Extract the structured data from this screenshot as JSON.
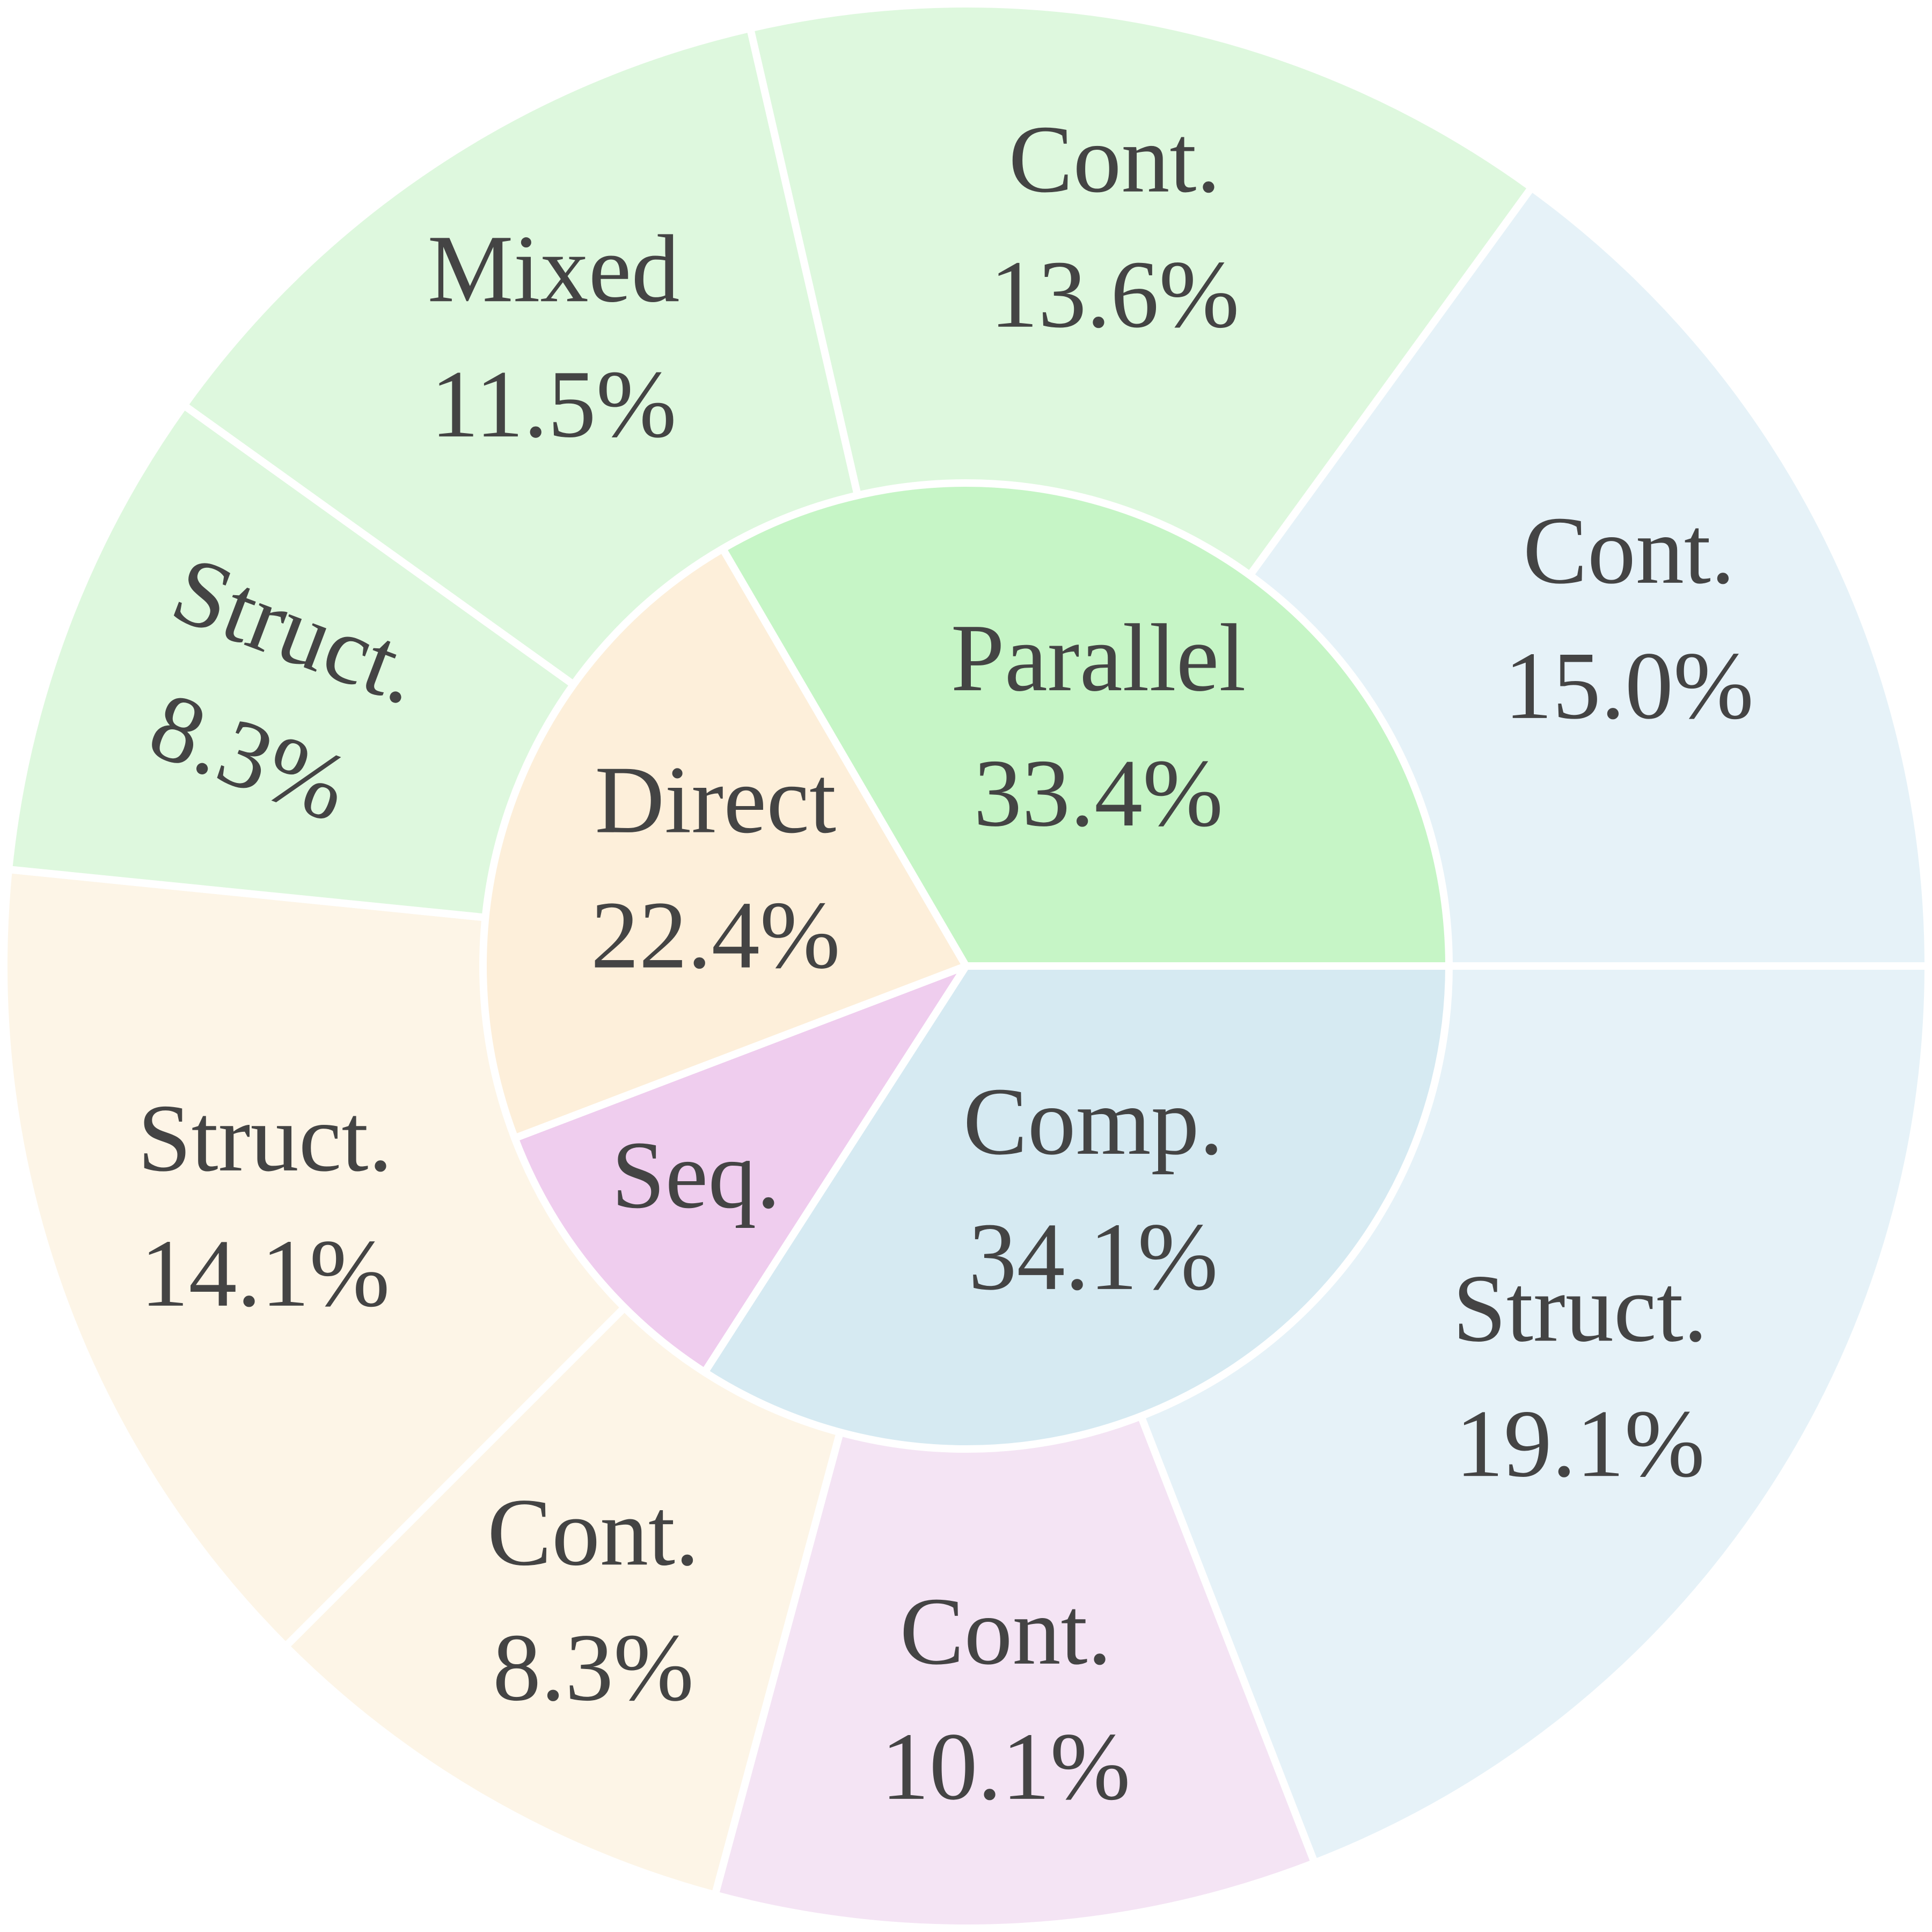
{
  "chart_data": {
    "type": "sunburst",
    "inner": [
      {
        "name": "Comp.",
        "value": 34.1,
        "value_label": "34.1%",
        "color": "#d6eaf2"
      },
      {
        "name": "Seq.",
        "value": 10.1,
        "value_label": "",
        "color": "#efcdee"
      },
      {
        "name": "Direct",
        "value": 22.4,
        "value_label": "22.4%",
        "color": "#fdefda"
      },
      {
        "name": "Parallel",
        "value": 33.4,
        "value_label": "33.4%",
        "color": "#c6f5c6"
      }
    ],
    "outer": [
      {
        "parent": "Comp.",
        "name": "Struct.",
        "value": 19.1,
        "value_label": "19.1%",
        "color": "#e6f2f8"
      },
      {
        "parent": "Seq.",
        "name": "Cont.",
        "value": 10.1,
        "value_label": "10.1%",
        "color": "#f4e4f4"
      },
      {
        "parent": "Direct",
        "name": "Cont.",
        "value": 8.3,
        "value_label": "8.3%",
        "color": "#fdf5e7"
      },
      {
        "parent": "Direct",
        "name": "Struct.",
        "value": 14.1,
        "value_label": "14.1%",
        "color": "#fdf5e7"
      },
      {
        "parent": "Parallel",
        "name": "Struct.",
        "value": 8.3,
        "value_label": "8.3%",
        "color": "#def8de"
      },
      {
        "parent": "Parallel",
        "name": "Mixed",
        "value": 11.5,
        "value_label": "11.5%",
        "color": "#def8de"
      },
      {
        "parent": "Parallel",
        "name": "Cont.",
        "value": 13.6,
        "value_label": "13.6%",
        "color": "#def8de"
      },
      {
        "parent": "Comp.",
        "name": "Cont.",
        "value": 15.0,
        "value_label": "15.0%",
        "color": "#e6f2f8"
      }
    ],
    "text_color": "#444444",
    "separator_color": "#ffffff"
  }
}
